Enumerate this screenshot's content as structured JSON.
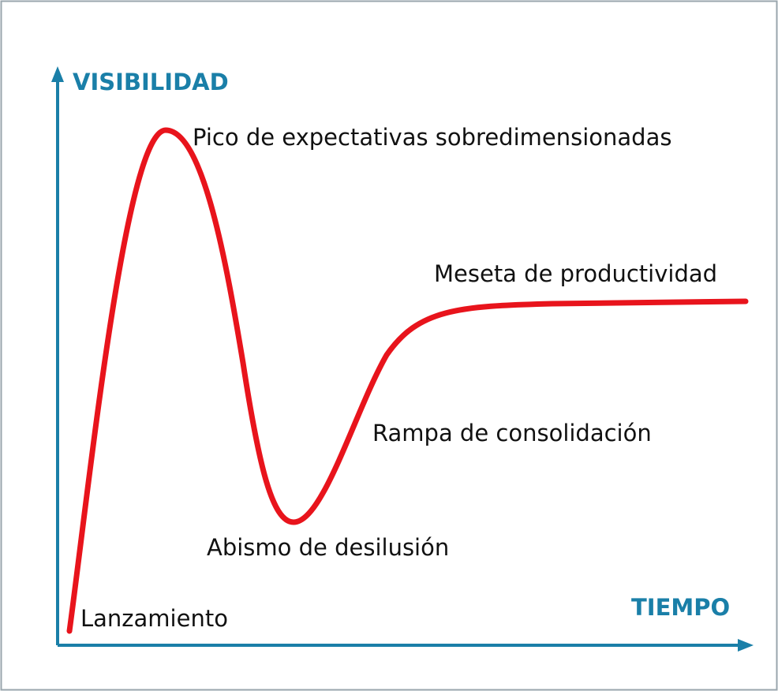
{
  "colors": {
    "axis": "#1a7fa8",
    "curve": "#e8141c",
    "text": "#111111",
    "border": "#9aa6ad"
  },
  "axes": {
    "y_label": "VISIBILIDAD",
    "x_label": "TIEMPO"
  },
  "phases": [
    {
      "label": "Lanzamiento"
    },
    {
      "label": "Pico de expectativas sobredimensionadas"
    },
    {
      "label": "Abismo de desilusión"
    },
    {
      "label": "Rampa de consolidación"
    },
    {
      "label": "Meseta de productividad"
    }
  ]
}
